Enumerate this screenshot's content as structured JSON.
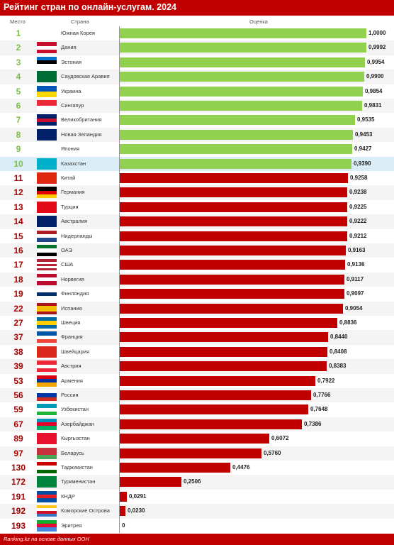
{
  "title": "Рейтинг стран по онлайн-услугам. 2024",
  "columns": {
    "rank": "Место",
    "country": "Страна",
    "score": "Оценка"
  },
  "source": "Ranking.kz на основе данных ООН",
  "colors": {
    "green": "#92d050",
    "red": "#c00000",
    "rank_green": "#7ac143",
    "rank_red": "#a50000",
    "highlight": "#dbeef7"
  },
  "chart_data": {
    "type": "bar",
    "orientation": "horizontal",
    "xlim": [
      0,
      1
    ],
    "categories": [
      "Южная Корея",
      "Дания",
      "Эстония",
      "Саудовская Аравия",
      "Украина",
      "Сингапур",
      "Великобритания",
      "Новая Зеландия",
      "Япония",
      "Казахстан",
      "Китай",
      "Германия",
      "Турция",
      "Австралия",
      "Нидерланды",
      "ОАЭ",
      "США",
      "Норвегия",
      "Финляндия",
      "Испания",
      "Швеция",
      "Франция",
      "Швейцария",
      "Австрия",
      "Армения",
      "Россия",
      "Узбекистан",
      "Азербайджан",
      "Кыргызстан",
      "Беларусь",
      "Таджикистан",
      "Туркменистан",
      "КНДР",
      "Коморские Острова",
      "Эритрея"
    ],
    "ranks": [
      "1",
      "2",
      "3",
      "4",
      "5",
      "6",
      "7",
      "8",
      "9",
      "10",
      "11",
      "12",
      "13",
      "14",
      "15",
      "16",
      "17",
      "18",
      "19",
      "22",
      "27",
      "37",
      "38",
      "39",
      "53",
      "56",
      "59",
      "67",
      "89",
      "97",
      "130",
      "172",
      "191",
      "192",
      "193"
    ],
    "values": [
      1.0,
      0.9992,
      0.9954,
      0.99,
      0.9854,
      0.9831,
      0.9535,
      0.9453,
      0.9427,
      0.939,
      0.9258,
      0.9238,
      0.9225,
      0.9222,
      0.9212,
      0.9163,
      0.9136,
      0.9117,
      0.9097,
      0.9054,
      0.8836,
      0.844,
      0.8408,
      0.8383,
      0.7922,
      0.7766,
      0.7648,
      0.7386,
      0.6072,
      0.576,
      0.4476,
      0.2506,
      0.0291,
      0.023,
      0
    ],
    "value_labels": [
      "1,0000",
      "0,9992",
      "0,9954",
      "0,9900",
      "0,9854",
      "0,9831",
      "0,9535",
      "0,9453",
      "0,9427",
      "0,9390",
      "0,9258",
      "0,9238",
      "0,9225",
      "0,9222",
      "0,9212",
      "0,9163",
      "0,9136",
      "0,9117",
      "0,9097",
      "0,9054",
      "0,8836",
      "0,8440",
      "0,8408",
      "0,8383",
      "0,7922",
      "0,7766",
      "0,7648",
      "0,7386",
      "0,6072",
      "0,5760",
      "0,4476",
      "0,2506",
      "0,0291",
      "0,0230",
      "0"
    ],
    "bar_colors": [
      "green",
      "green",
      "green",
      "green",
      "green",
      "green",
      "green",
      "green",
      "green",
      "green",
      "red",
      "red",
      "red",
      "red",
      "red",
      "red",
      "red",
      "red",
      "red",
      "red",
      "red",
      "red",
      "red",
      "red",
      "red",
      "red",
      "red",
      "red",
      "red",
      "red",
      "red",
      "red",
      "red",
      "red",
      "red"
    ],
    "highlighted_index": 9
  },
  "flags": [
    [
      "#ffffff",
      "#ffffff",
      "#ffffff"
    ],
    [
      "#c8102e",
      "#ffffff",
      "#c8102e"
    ],
    [
      "#0072ce",
      "#000000",
      "#ffffff"
    ],
    [
      "#006c35",
      "#006c35",
      "#006c35"
    ],
    [
      "#0057b7",
      "#ffd700"
    ],
    [
      "#ed2939",
      "#ffffff"
    ],
    [
      "#012169",
      "#c8102e",
      "#012169"
    ],
    [
      "#012169",
      "#012169",
      "#012169"
    ],
    [
      "#ffffff",
      "#ffffff",
      "#ffffff"
    ],
    [
      "#00afca",
      "#00afca",
      "#00afca"
    ],
    [
      "#de2910",
      "#de2910",
      "#de2910"
    ],
    [
      "#000000",
      "#dd0000",
      "#ffce00"
    ],
    [
      "#e30a17",
      "#e30a17",
      "#e30a17"
    ],
    [
      "#012169",
      "#012169",
      "#012169"
    ],
    [
      "#ae1c28",
      "#ffffff",
      "#21468b"
    ],
    [
      "#00732f",
      "#ffffff",
      "#000000"
    ],
    [
      "#b22234",
      "#ffffff",
      "#b22234",
      "#ffffff",
      "#b22234"
    ],
    [
      "#ba0c2f",
      "#ffffff",
      "#ba0c2f"
    ],
    [
      "#ffffff",
      "#002f6c",
      "#ffffff"
    ],
    [
      "#aa151b",
      "#f1bf00",
      "#f1bf00",
      "#aa151b"
    ],
    [
      "#006aa7",
      "#fecc00",
      "#006aa7"
    ],
    [
      "#0055a4",
      "#ffffff",
      "#ef4135"
    ],
    [
      "#da291c",
      "#da291c",
      "#da291c"
    ],
    [
      "#ed2939",
      "#ffffff",
      "#ed2939"
    ],
    [
      "#d90012",
      "#0033a0",
      "#f2a800"
    ],
    [
      "#ffffff",
      "#0039a6",
      "#d52b1e"
    ],
    [
      "#0099b5",
      "#ffffff",
      "#1eb53a"
    ],
    [
      "#0092bc",
      "#e4002b",
      "#00af66"
    ],
    [
      "#e8112d",
      "#e8112d",
      "#e8112d"
    ],
    [
      "#c8313e",
      "#c8313e",
      "#4aa657"
    ],
    [
      "#cc0000",
      "#ffffff",
      "#006600"
    ],
    [
      "#00843d",
      "#00843d",
      "#00843d"
    ],
    [
      "#024fa2",
      "#ed1c27",
      "#024fa2"
    ],
    [
      "#ffc61e",
      "#ffffff",
      "#ce1126",
      "#3a75c4"
    ],
    [
      "#12ad2b",
      "#ea0437",
      "#4189dd"
    ]
  ]
}
